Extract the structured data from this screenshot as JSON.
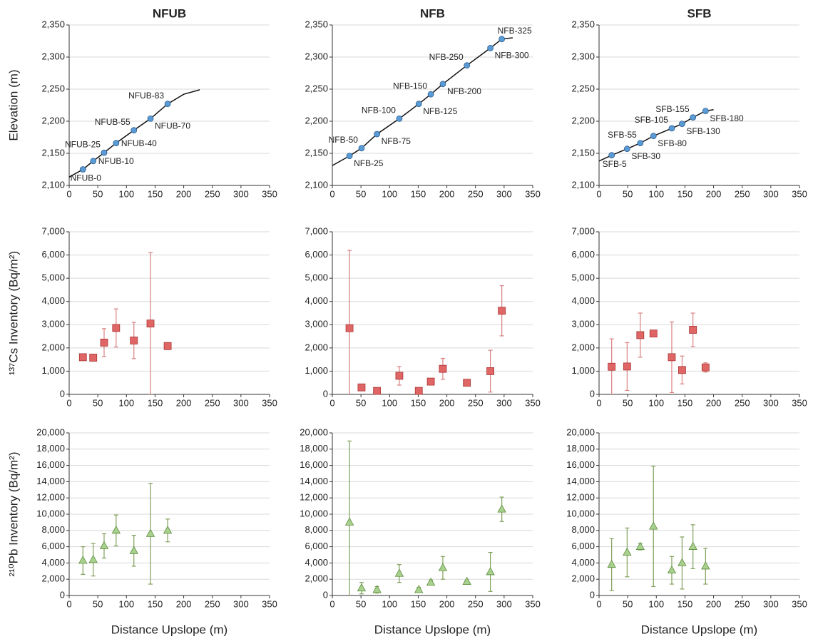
{
  "chart_data": [
    {
      "type": "line",
      "title": "NFUB",
      "ylabel": "Elevation (m)",
      "xlim": [
        0,
        350
      ],
      "xticks": [
        0,
        50,
        100,
        150,
        200,
        250,
        300,
        350
      ],
      "ylim": [
        2100,
        2350
      ],
      "yticks": [
        {
          "value": 2100,
          "label": "2,100"
        },
        {
          "value": 2150,
          "label": "2,150"
        },
        {
          "value": 2200,
          "label": "2,200"
        },
        {
          "value": 2250,
          "label": "2,250"
        },
        {
          "value": 2300,
          "label": "2,300"
        },
        {
          "value": 2350,
          "label": "2,350"
        }
      ],
      "grid": true,
      "series": [
        {
          "style": "line",
          "color": "#111111",
          "x": [
            0,
            24,
            42,
            61,
            82,
            113,
            142,
            172,
            200,
            228
          ],
          "values": [
            2113,
            2125,
            2138,
            2151,
            2166,
            2186,
            2204,
            2227,
            2242,
            2249
          ]
        },
        {
          "style": "markers",
          "color": "#5b9bd5",
          "x": [
            24,
            42,
            61,
            82,
            113,
            142,
            172
          ],
          "values": [
            2125,
            2138,
            2151,
            2166,
            2186,
            2204,
            2227
          ],
          "point_labels": [
            "NFUB-0",
            "NFUB-10",
            "NFUB-25",
            "NFUB-40",
            "NFUB-55",
            "NFUB-70",
            "NFUB-83"
          ]
        }
      ]
    },
    {
      "type": "line",
      "title": "NFB",
      "xlim": [
        0,
        350
      ],
      "xticks": [
        0,
        50,
        100,
        150,
        200,
        250,
        300,
        350
      ],
      "ylim": [
        2100,
        2350
      ],
      "yticks": [
        {
          "value": 2100,
          "label": "2,100"
        },
        {
          "value": 2150,
          "label": "2,150"
        },
        {
          "value": 2200,
          "label": "2,200"
        },
        {
          "value": 2250,
          "label": "2,250"
        },
        {
          "value": 2300,
          "label": "2,300"
        },
        {
          "value": 2350,
          "label": "2,350"
        }
      ],
      "grid": true,
      "series": [
        {
          "style": "line",
          "color": "#111111",
          "x": [
            0,
            30,
            51,
            78,
            117,
            151,
            172,
            193,
            235,
            276,
            296,
            315
          ],
          "values": [
            2131,
            2146,
            2158,
            2180,
            2204,
            2227,
            2242,
            2258,
            2287,
            2314,
            2328,
            2330
          ]
        },
        {
          "style": "markers",
          "color": "#5b9bd5",
          "x": [
            30,
            51,
            78,
            117,
            151,
            172,
            193,
            235,
            276,
            296
          ],
          "values": [
            2146,
            2158,
            2180,
            2204,
            2227,
            2242,
            2258,
            2287,
            2314,
            2328
          ],
          "point_labels": [
            "NFB-25",
            "NFB-50",
            "NFB-75",
            "NFB-100",
            "NFB-125",
            "NFB-150",
            "NFB-200",
            "NFB-250",
            "NFB-300",
            "NFB-325"
          ]
        }
      ]
    },
    {
      "type": "line",
      "title": "SFB",
      "xlim": [
        0,
        350
      ],
      "xticks": [
        0,
        50,
        100,
        150,
        200,
        250,
        300,
        350
      ],
      "ylim": [
        2100,
        2350
      ],
      "yticks": [
        {
          "value": 2100,
          "label": "2,100"
        },
        {
          "value": 2150,
          "label": "2,150"
        },
        {
          "value": 2200,
          "label": "2,200"
        },
        {
          "value": 2250,
          "label": "2,250"
        },
        {
          "value": 2300,
          "label": "2,300"
        },
        {
          "value": 2350,
          "label": "2,350"
        }
      ],
      "grid": true,
      "series": [
        {
          "style": "line",
          "color": "#111111",
          "x": [
            0,
            22,
            49,
            72,
            95,
            127,
            145,
            164,
            186,
            200
          ],
          "values": [
            2138,
            2147,
            2157,
            2166,
            2177,
            2189,
            2196,
            2206,
            2216,
            2218
          ]
        },
        {
          "style": "markers",
          "color": "#5b9bd5",
          "x": [
            22,
            49,
            72,
            95,
            127,
            145,
            164,
            186
          ],
          "values": [
            2147,
            2157,
            2166,
            2177,
            2189,
            2196,
            2206,
            2216
          ],
          "point_labels": [
            "SFB-5",
            "SFB-30",
            "SFB-55",
            "SFB-80",
            "SFB-105",
            "SFB-130",
            "SFB-155",
            "SFB-180"
          ]
        }
      ]
    },
    {
      "type": "scatter",
      "ylabel": "¹³⁷Cs Inventory (Bq/m²)",
      "marker": "square",
      "xlim": [
        0,
        350
      ],
      "xticks": [
        0,
        50,
        100,
        150,
        200,
        250,
        300,
        350
      ],
      "ylim": [
        0,
        7000
      ],
      "yticks": [
        0,
        {
          "value": 1000,
          "label": "1,000"
        },
        {
          "value": 2000,
          "label": "2,000"
        },
        {
          "value": 3000,
          "label": "3,000"
        },
        {
          "value": 4000,
          "label": "4,000"
        },
        {
          "value": 5000,
          "label": "5,000"
        },
        {
          "value": 6000,
          "label": "6,000"
        },
        {
          "value": 7000,
          "label": "7,000"
        }
      ],
      "grid": true,
      "series": [
        {
          "color": "#e06666",
          "error_color": "#d98080",
          "x": [
            24,
            42,
            61,
            82,
            113,
            142,
            172
          ],
          "values": [
            1600,
            1580,
            2230,
            2860,
            2320,
            3050,
            2080
          ],
          "errors": [
            80,
            150,
            600,
            820,
            780,
            3060,
            150
          ]
        }
      ]
    },
    {
      "type": "scatter",
      "marker": "square",
      "xlim": [
        0,
        350
      ],
      "xticks": [
        0,
        50,
        100,
        150,
        200,
        250,
        300,
        350
      ],
      "ylim": [
        0,
        7000
      ],
      "yticks": [
        0,
        {
          "value": 1000,
          "label": "1,000"
        },
        {
          "value": 2000,
          "label": "2,000"
        },
        {
          "value": 3000,
          "label": "3,000"
        },
        {
          "value": 4000,
          "label": "4,000"
        },
        {
          "value": 5000,
          "label": "5,000"
        },
        {
          "value": 6000,
          "label": "6,000"
        },
        {
          "value": 7000,
          "label": "7,000"
        }
      ],
      "grid": true,
      "series": [
        {
          "color": "#e06666",
          "error_color": "#d98080",
          "x": [
            30,
            51,
            78,
            117,
            151,
            172,
            193,
            235,
            276,
            296
          ],
          "values": [
            2850,
            300,
            150,
            800,
            150,
            550,
            1100,
            500,
            1000,
            3600
          ],
          "errors": [
            3350,
            100,
            60,
            400,
            60,
            100,
            450,
            80,
            900,
            1080
          ]
        }
      ]
    },
    {
      "type": "scatter",
      "marker": "square",
      "xlim": [
        0,
        350
      ],
      "xticks": [
        0,
        50,
        100,
        150,
        200,
        250,
        300,
        350
      ],
      "ylim": [
        0,
        7000
      ],
      "yticks": [
        0,
        {
          "value": 1000,
          "label": "1,000"
        },
        {
          "value": 2000,
          "label": "2,000"
        },
        {
          "value": 3000,
          "label": "3,000"
        },
        {
          "value": 4000,
          "label": "4,000"
        },
        {
          "value": 5000,
          "label": "5,000"
        },
        {
          "value": 6000,
          "label": "6,000"
        },
        {
          "value": 7000,
          "label": "7,000"
        }
      ],
      "grid": true,
      "series": [
        {
          "color": "#e06666",
          "error_color": "#d98080",
          "x": [
            22,
            49,
            72,
            95,
            127,
            145,
            164,
            186
          ],
          "values": [
            1190,
            1200,
            2550,
            2620,
            1600,
            1050,
            2780,
            1160
          ],
          "errors": [
            1200,
            1030,
            950,
            120,
            1520,
            600,
            720,
            200
          ]
        }
      ]
    },
    {
      "type": "scatter",
      "ylabel": "²¹⁰Pb Inventory (Bq/m²)",
      "xlabel": "Distance Upslope (m)",
      "marker": "triangle",
      "xlim": [
        0,
        350
      ],
      "xticks": [
        0,
        50,
        100,
        150,
        200,
        250,
        300,
        350
      ],
      "ylim": [
        0,
        20000
      ],
      "yticks": [
        0,
        {
          "value": 2000,
          "label": "2,000"
        },
        {
          "value": 4000,
          "label": "4,000"
        },
        {
          "value": 6000,
          "label": "6,000"
        },
        {
          "value": 8000,
          "label": "8,000"
        },
        {
          "value": 10000,
          "label": "10,000"
        },
        {
          "value": 12000,
          "label": "12,000"
        },
        {
          "value": 14000,
          "label": "14,000"
        },
        {
          "value": 16000,
          "label": "16,000"
        },
        {
          "value": 18000,
          "label": "18,000"
        },
        {
          "value": 20000,
          "label": "20,000"
        }
      ],
      "grid": true,
      "series": [
        {
          "color": "#a9d18e",
          "error_color": "#7f9f5a",
          "x": [
            24,
            42,
            61,
            82,
            113,
            142,
            172
          ],
          "values": [
            4300,
            4400,
            6100,
            8000,
            5500,
            7600,
            8000
          ],
          "errors": [
            1700,
            2000,
            1500,
            1900,
            1900,
            6200,
            1400
          ]
        }
      ]
    },
    {
      "type": "scatter",
      "xlabel": "Distance Upslope (m)",
      "marker": "triangle",
      "xlim": [
        0,
        350
      ],
      "xticks": [
        0,
        50,
        100,
        150,
        200,
        250,
        300,
        350
      ],
      "ylim": [
        0,
        20000
      ],
      "yticks": [
        0,
        {
          "value": 2000,
          "label": "2,000"
        },
        {
          "value": 4000,
          "label": "4,000"
        },
        {
          "value": 6000,
          "label": "6,000"
        },
        {
          "value": 8000,
          "label": "8,000"
        },
        {
          "value": 10000,
          "label": "10,000"
        },
        {
          "value": 12000,
          "label": "12,000"
        },
        {
          "value": 14000,
          "label": "14,000"
        },
        {
          "value": 16000,
          "label": "16,000"
        },
        {
          "value": 18000,
          "label": "18,000"
        },
        {
          "value": 20000,
          "label": "20,000"
        }
      ],
      "grid": true,
      "series": [
        {
          "color": "#a9d18e",
          "error_color": "#7f9f5a",
          "x": [
            30,
            51,
            78,
            117,
            151,
            172,
            193,
            235,
            276,
            296
          ],
          "values": [
            9000,
            900,
            700,
            2700,
            700,
            1600,
            3400,
            1700,
            2900,
            10600
          ],
          "errors": [
            10000,
            700,
            400,
            1100,
            300,
            300,
            1400,
            200,
            2400,
            1500
          ]
        }
      ]
    },
    {
      "type": "scatter",
      "xlabel": "Distance Upslope (m)",
      "marker": "triangle",
      "xlim": [
        0,
        350
      ],
      "xticks": [
        0,
        50,
        100,
        150,
        200,
        250,
        300,
        350
      ],
      "ylim": [
        0,
        20000
      ],
      "yticks": [
        0,
        {
          "value": 2000,
          "label": "2,000"
        },
        {
          "value": 4000,
          "label": "4,000"
        },
        {
          "value": 6000,
          "label": "6,000"
        },
        {
          "value": 8000,
          "label": "8,000"
        },
        {
          "value": 10000,
          "label": "10,000"
        },
        {
          "value": 12000,
          "label": "12,000"
        },
        {
          "value": 14000,
          "label": "14,000"
        },
        {
          "value": 16000,
          "label": "16,000"
        },
        {
          "value": 18000,
          "label": "18,000"
        },
        {
          "value": 20000,
          "label": "20,000"
        }
      ],
      "grid": true,
      "series": [
        {
          "color": "#a9d18e",
          "error_color": "#7f9f5a",
          "x": [
            22,
            49,
            72,
            95,
            127,
            145,
            164,
            186
          ],
          "values": [
            3800,
            5300,
            6000,
            8500,
            3100,
            4000,
            6000,
            3600
          ],
          "errors": [
            3200,
            3000,
            400,
            7400,
            1700,
            3200,
            2700,
            2200
          ]
        }
      ]
    }
  ]
}
